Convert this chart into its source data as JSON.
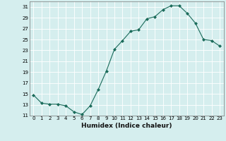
{
  "x": [
    0,
    1,
    2,
    3,
    4,
    5,
    6,
    7,
    8,
    9,
    10,
    11,
    12,
    13,
    14,
    15,
    16,
    17,
    18,
    19,
    20,
    21,
    22,
    23
  ],
  "y": [
    14.8,
    13.3,
    13.1,
    13.1,
    12.8,
    11.7,
    11.2,
    12.8,
    15.8,
    19.2,
    23.2,
    24.8,
    26.5,
    26.8,
    28.8,
    29.2,
    30.5,
    31.2,
    31.2,
    29.8,
    28.0,
    25.0,
    24.8,
    23.8
  ],
  "xlabel": "Humidex (Indice chaleur)",
  "ylim": [
    11,
    32
  ],
  "xlim": [
    -0.5,
    23.5
  ],
  "yticks": [
    11,
    13,
    15,
    17,
    19,
    21,
    23,
    25,
    27,
    29,
    31
  ],
  "xticks": [
    0,
    1,
    2,
    3,
    4,
    5,
    6,
    7,
    8,
    9,
    10,
    11,
    12,
    13,
    14,
    15,
    16,
    17,
    18,
    19,
    20,
    21,
    22,
    23
  ],
  "line_color": "#1a6b5a",
  "marker": "D",
  "marker_size": 2.0,
  "bg_color": "#d5eeee",
  "grid_color": "#ffffff",
  "xlabel_fontsize": 6.5,
  "tick_fontsize": 5.0
}
